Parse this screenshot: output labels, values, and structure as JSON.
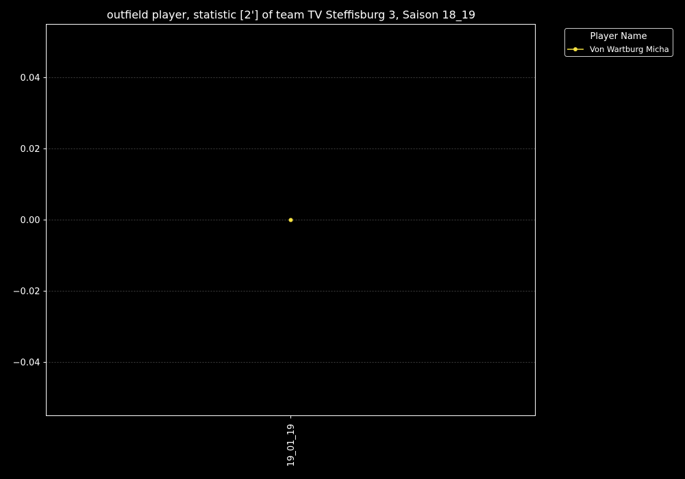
{
  "chart_data": {
    "type": "line",
    "title": "outfield player, statistic [2'] of team TV Steffisburg 3, Saison 18_19",
    "xlabel": "",
    "ylabel": "",
    "categories": [
      "19_01_19"
    ],
    "series": [
      {
        "name": "Von Wartburg Micha",
        "values": [
          0.0
        ]
      }
    ],
    "ylim": [
      -0.055,
      0.055
    ],
    "yticks": [
      -0.04,
      -0.02,
      0.0,
      0.02,
      0.04
    ],
    "ytick_labels": [
      "−0.04",
      "−0.02",
      "0.00",
      "0.02",
      "0.04"
    ],
    "grid": true,
    "legend": {
      "title": "Player Name",
      "placement": "outside-top-right"
    },
    "colors": {
      "background": "#000000",
      "text": "#ffffff",
      "grid": "#808080",
      "series": [
        "#f5e142"
      ]
    }
  }
}
